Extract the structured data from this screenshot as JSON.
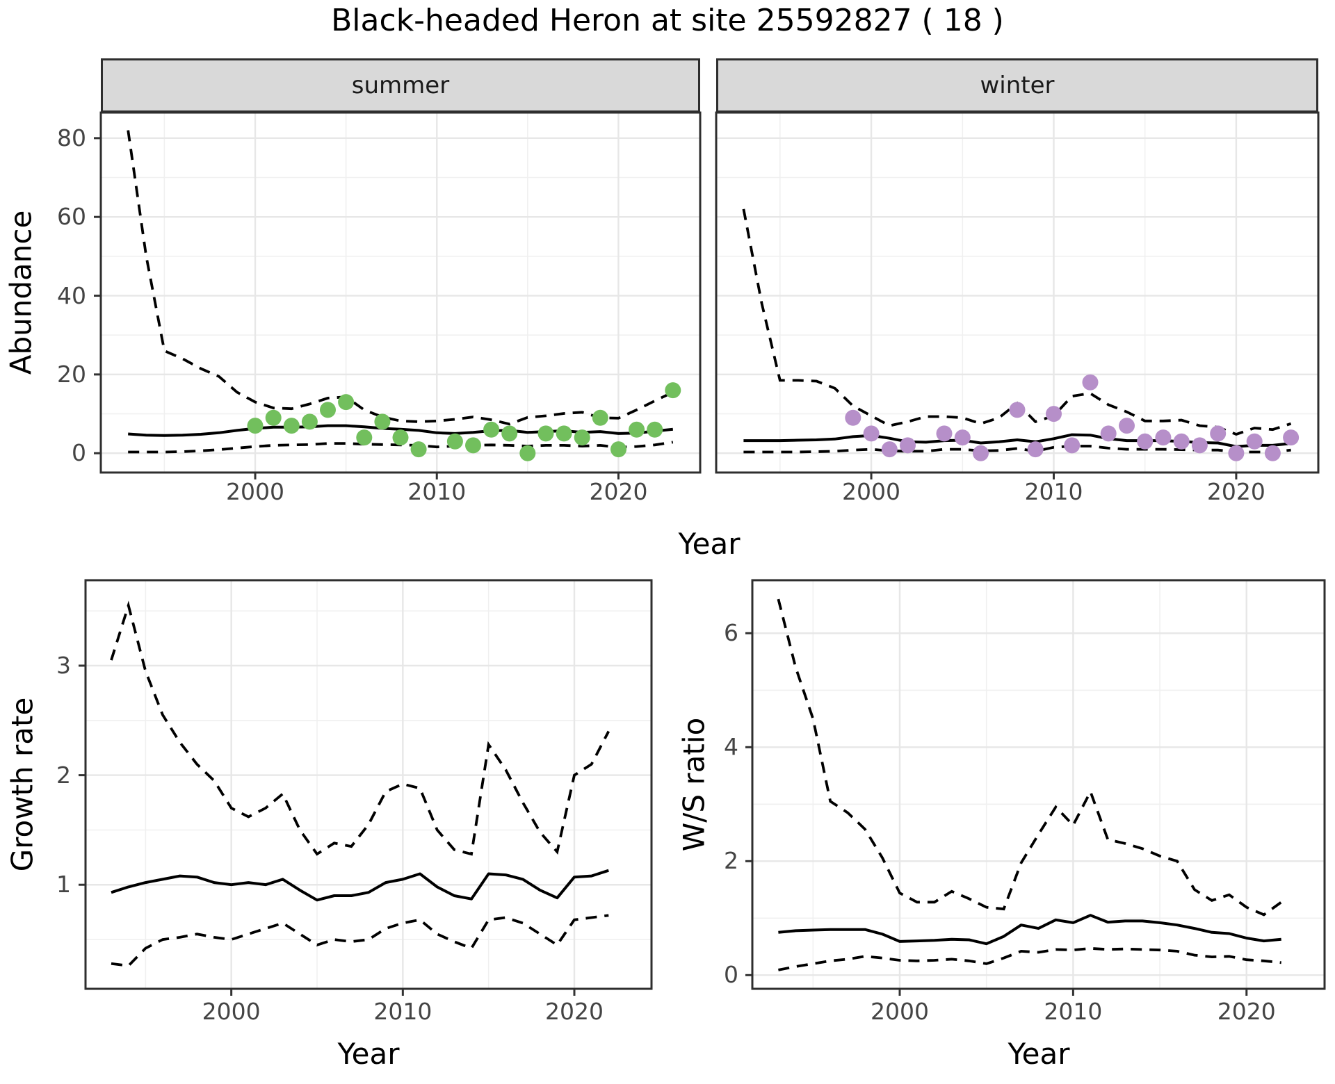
{
  "title": "Black-headed Heron at site 25592827 ( 18 )",
  "facets": {
    "summer": "summer",
    "winter": "winter"
  },
  "labels": {
    "abundance": "Abundance",
    "growth": "Growth rate",
    "ws": "W/S ratio",
    "year": "Year"
  },
  "colors": {
    "summer_point": "#72bf5d",
    "winter_point": "#b68fc9",
    "line": "#000000",
    "strip_bg": "#d9d9d9",
    "panel_border": "#2e2e2e",
    "grid_major": "#e7e7e7",
    "grid_minor": "#f0f0f0",
    "tick_text": "#444444"
  },
  "chart_data": [
    {
      "id": "abundance-summer",
      "type": "line",
      "facet_label": "summer",
      "ylabel": "Abundance",
      "xlabel": "Year",
      "x_domain": [
        1991.5,
        2024.5
      ],
      "y_domain": [
        -4.9,
        86.5
      ],
      "x_ticks": [
        2000,
        2010,
        2020
      ],
      "x_minor": [
        1995,
        2005,
        2015
      ],
      "y_ticks": [
        0,
        20,
        40,
        60,
        80
      ],
      "y_minor": [
        10,
        30,
        50,
        70
      ],
      "show_y_tick_labels": true,
      "years": [
        1993,
        1994,
        1995,
        1996,
        1997,
        1998,
        1999,
        2000,
        2001,
        2002,
        2003,
        2004,
        2005,
        2006,
        2007,
        2008,
        2009,
        2010,
        2011,
        2012,
        2013,
        2014,
        2015,
        2016,
        2017,
        2018,
        2019,
        2020,
        2021,
        2022,
        2023
      ],
      "mean": [
        4.9,
        4.6,
        4.5,
        4.6,
        4.8,
        5.2,
        5.8,
        6.3,
        6.6,
        6.6,
        6.7,
        7.0,
        7.0,
        6.7,
        6.3,
        6.1,
        5.8,
        5.2,
        5.0,
        5.3,
        5.7,
        5.8,
        5.3,
        5.5,
        5.7,
        5.3,
        5.5,
        5.0,
        5.1,
        5.6,
        6.1
      ],
      "upper": [
        82,
        50,
        26,
        24,
        21.5,
        19.5,
        15.5,
        13,
        11.5,
        11.3,
        12.5,
        14,
        14.3,
        11,
        9.2,
        8.2,
        8.0,
        8.2,
        8.6,
        9.2,
        8.5,
        7.4,
        9.1,
        9.5,
        10.1,
        10.4,
        9.0,
        8.9,
        11,
        13.3,
        15.5
      ],
      "lower": [
        0.3,
        0.3,
        0.3,
        0.4,
        0.6,
        0.9,
        1.3,
        1.7,
        2.0,
        2.1,
        2.2,
        2.5,
        2.5,
        2.3,
        2.2,
        2.1,
        2.0,
        1.6,
        1.8,
        2.0,
        2.1,
        2.0,
        1.8,
        2.0,
        2.0,
        1.8,
        2.0,
        1.5,
        1.7,
        2.1,
        2.8
      ],
      "obs_years": [
        2000,
        2001,
        2002,
        2003,
        2004,
        2005,
        2006,
        2007,
        2008,
        2009,
        2011,
        2012,
        2013,
        2014,
        2015,
        2016,
        2017,
        2018,
        2019,
        2020,
        2021,
        2022,
        2023
      ],
      "obs_values": [
        7,
        9,
        7,
        8,
        11,
        13,
        4,
        8,
        4,
        1,
        3,
        2,
        6,
        5,
        0,
        5,
        5,
        4,
        9,
        1,
        6,
        6,
        16
      ],
      "point_color": "#72bf5d"
    },
    {
      "id": "abundance-winter",
      "type": "line",
      "facet_label": "winter",
      "ylabel": "Abundance",
      "xlabel": "Year",
      "x_domain": [
        1991.5,
        2024.5
      ],
      "y_domain": [
        -4.9,
        86.5
      ],
      "x_ticks": [
        2000,
        2010,
        2020
      ],
      "x_minor": [
        1995,
        2005,
        2015
      ],
      "y_ticks": [
        0,
        20,
        40,
        60,
        80
      ],
      "y_minor": [
        10,
        30,
        50,
        70
      ],
      "show_y_tick_labels": false,
      "years": [
        1993,
        1994,
        1995,
        1996,
        1997,
        1998,
        1999,
        2000,
        2001,
        2002,
        2003,
        2004,
        2005,
        2006,
        2007,
        2008,
        2009,
        2010,
        2011,
        2012,
        2013,
        2014,
        2015,
        2016,
        2017,
        2018,
        2019,
        2020,
        2021,
        2022,
        2023
      ],
      "mean": [
        3.2,
        3.2,
        3.2,
        3.3,
        3.4,
        3.6,
        4.2,
        4.5,
        3.8,
        2.9,
        2.8,
        3.2,
        3.3,
        2.6,
        2.9,
        3.4,
        2.9,
        3.7,
        4.7,
        4.6,
        3.7,
        3.2,
        3.2,
        3.2,
        3.0,
        2.7,
        2.6,
        1.7,
        2.0,
        2.0,
        2.5
      ],
      "upper": [
        62,
        38,
        18.5,
        18.5,
        18.3,
        16.5,
        12,
        9.5,
        7.0,
        8.0,
        9.3,
        9.3,
        9.0,
        7.5,
        9.0,
        12.7,
        8.0,
        9.5,
        14.5,
        15.2,
        12.3,
        10.5,
        8.2,
        8.2,
        8.4,
        7.0,
        6.6,
        4.8,
        6.4,
        6.0,
        7.5
      ],
      "lower": [
        0.3,
        0.3,
        0.3,
        0.3,
        0.4,
        0.5,
        0.8,
        1.0,
        0.6,
        0.5,
        0.5,
        1.0,
        1.0,
        0.6,
        0.7,
        1.2,
        0.5,
        1.5,
        1.8,
        1.8,
        1.3,
        1.0,
        1.0,
        1.0,
        0.9,
        0.8,
        0.8,
        0.3,
        0.3,
        0.3,
        0.8
      ],
      "obs_years": [
        1999,
        2000,
        2001,
        2002,
        2004,
        2005,
        2006,
        2008,
        2009,
        2010,
        2011,
        2012,
        2013,
        2014,
        2015,
        2016,
        2017,
        2018,
        2019,
        2020,
        2021,
        2022,
        2023
      ],
      "obs_values": [
        9,
        5,
        1,
        2,
        5,
        4,
        0,
        11,
        1,
        10,
        2,
        18,
        5,
        7,
        3,
        4,
        3,
        2,
        5,
        0,
        3,
        0,
        4
      ],
      "point_color": "#b68fc9"
    },
    {
      "id": "growth-rate",
      "type": "line",
      "facet_label": "",
      "ylabel": "Growth rate",
      "xlabel": "Year",
      "x_domain": [
        1991.5,
        2024.5
      ],
      "y_domain": [
        0.05,
        3.78
      ],
      "x_ticks": [
        2000,
        2010,
        2020
      ],
      "x_minor": [
        1995,
        2005,
        2015
      ],
      "y_ticks": [
        1,
        2,
        3
      ],
      "y_minor": [
        0.5,
        1.5,
        2.5,
        3.5
      ],
      "show_y_tick_labels": true,
      "years": [
        1993,
        1994,
        1995,
        1996,
        1997,
        1998,
        1999,
        2000,
        2001,
        2002,
        2003,
        2004,
        2005,
        2006,
        2007,
        2008,
        2009,
        2010,
        2011,
        2012,
        2013,
        2014,
        2015,
        2016,
        2017,
        2018,
        2019,
        2020,
        2021,
        2022
      ],
      "mean": [
        0.93,
        0.98,
        1.02,
        1.05,
        1.08,
        1.07,
        1.02,
        1.0,
        1.02,
        1.0,
        1.05,
        0.95,
        0.86,
        0.9,
        0.9,
        0.93,
        1.02,
        1.05,
        1.1,
        0.98,
        0.9,
        0.87,
        1.1,
        1.09,
        1.05,
        0.95,
        0.88,
        1.07,
        1.08,
        1.13
      ],
      "upper": [
        3.05,
        3.55,
        2.95,
        2.55,
        2.3,
        2.1,
        1.95,
        1.7,
        1.62,
        1.7,
        1.83,
        1.5,
        1.28,
        1.38,
        1.35,
        1.55,
        1.85,
        1.92,
        1.88,
        1.5,
        1.32,
        1.28,
        2.28,
        2.05,
        1.75,
        1.48,
        1.3,
        2.0,
        2.1,
        2.4
      ],
      "lower": [
        0.28,
        0.26,
        0.42,
        0.5,
        0.52,
        0.55,
        0.52,
        0.5,
        0.55,
        0.6,
        0.65,
        0.55,
        0.45,
        0.5,
        0.48,
        0.5,
        0.6,
        0.65,
        0.68,
        0.55,
        0.48,
        0.42,
        0.68,
        0.7,
        0.65,
        0.55,
        0.45,
        0.68,
        0.7,
        0.72
      ],
      "obs_years": [],
      "obs_values": [],
      "point_color": "#000000"
    },
    {
      "id": "ws-ratio",
      "type": "line",
      "facet_label": "",
      "ylabel": "W/S ratio",
      "xlabel": "Year",
      "x_domain": [
        1991.5,
        2024.5
      ],
      "y_domain": [
        -0.24,
        6.93
      ],
      "x_ticks": [
        2000,
        2010,
        2020
      ],
      "x_minor": [
        1995,
        2005,
        2015
      ],
      "y_ticks": [
        0,
        2,
        4,
        6
      ],
      "y_minor": [
        1,
        3,
        5
      ],
      "show_y_tick_labels": true,
      "years": [
        1993,
        1994,
        1995,
        1996,
        1997,
        1998,
        1999,
        2000,
        2001,
        2002,
        2003,
        2004,
        2005,
        2006,
        2007,
        2008,
        2009,
        2010,
        2011,
        2012,
        2013,
        2014,
        2015,
        2016,
        2017,
        2018,
        2019,
        2020,
        2021,
        2022
      ],
      "mean": [
        0.75,
        0.78,
        0.79,
        0.8,
        0.8,
        0.8,
        0.72,
        0.59,
        0.6,
        0.61,
        0.63,
        0.62,
        0.55,
        0.68,
        0.88,
        0.82,
        0.97,
        0.92,
        1.05,
        0.93,
        0.95,
        0.95,
        0.92,
        0.88,
        0.82,
        0.75,
        0.73,
        0.65,
        0.6,
        0.63
      ],
      "upper": [
        6.6,
        5.4,
        4.5,
        3.05,
        2.85,
        2.56,
        2.06,
        1.44,
        1.28,
        1.28,
        1.47,
        1.34,
        1.19,
        1.16,
        1.97,
        2.47,
        2.95,
        2.63,
        3.22,
        2.38,
        2.31,
        2.22,
        2.09,
        2.0,
        1.5,
        1.31,
        1.41,
        1.19,
        1.06,
        1.28
      ],
      "lower": [
        0.09,
        0.15,
        0.2,
        0.25,
        0.28,
        0.33,
        0.3,
        0.26,
        0.25,
        0.26,
        0.28,
        0.25,
        0.2,
        0.3,
        0.42,
        0.4,
        0.45,
        0.44,
        0.47,
        0.45,
        0.46,
        0.45,
        0.44,
        0.42,
        0.35,
        0.32,
        0.33,
        0.27,
        0.25,
        0.22
      ],
      "obs_years": [],
      "obs_values": [],
      "point_color": "#000000"
    }
  ]
}
